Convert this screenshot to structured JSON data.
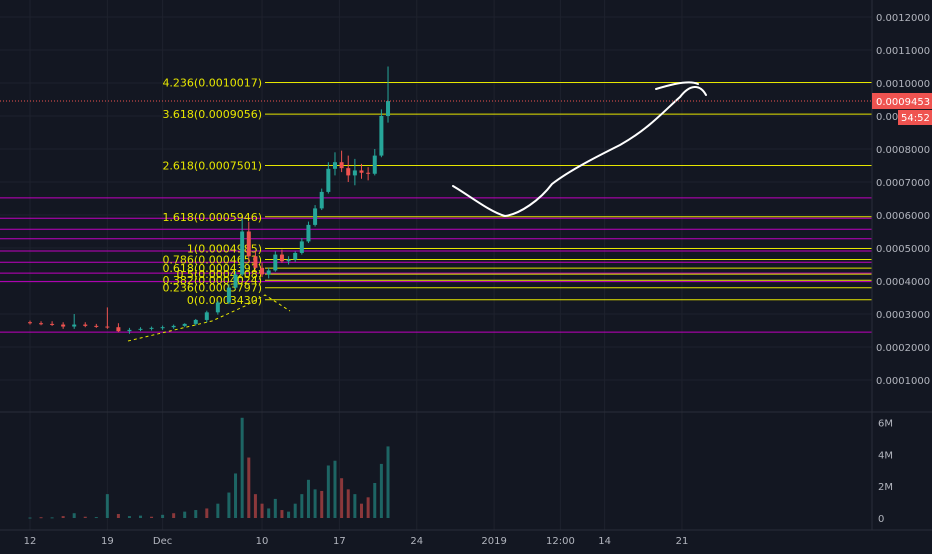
{
  "chart_data": {
    "type": "candlestick",
    "price_axis": {
      "ticks": [
        "0.0012000",
        "0.0011000",
        "0.0010000",
        "0.0009000",
        "0.0008000",
        "0.0007000",
        "0.0006000",
        "0.0005000",
        "0.0004000",
        "0.0003000",
        "0.0002000",
        "0.0001000"
      ],
      "tick_values": [
        0.0012,
        0.0011,
        0.001,
        0.0009,
        0.0008,
        0.0007,
        0.0006,
        0.0005,
        0.0004,
        0.0003,
        0.0002,
        0.0001
      ],
      "range": [
        0.0,
        0.00126
      ],
      "current_price_label": "0.0009453",
      "current_price": 0.0009453,
      "countdown_label": "54:52",
      "current_price_color": "#ef5350"
    },
    "volume_axis": {
      "ticks": [
        "6M",
        "4M",
        "2M",
        "0"
      ],
      "tick_values": [
        6000000,
        4000000,
        2000000,
        0
      ],
      "range": [
        0,
        6600000
      ]
    },
    "time_axis": {
      "ticks": [
        {
          "label": "12",
          "t": 0
        },
        {
          "label": "19",
          "t": 7
        },
        {
          "label": "Dec",
          "t": 12
        },
        {
          "label": "10",
          "t": 21
        },
        {
          "label": "17",
          "t": 28
        },
        {
          "label": "24",
          "t": 35
        },
        {
          "label": "2019",
          "t": 42
        },
        {
          "label": "12:00",
          "t": 48
        },
        {
          "label": "14",
          "t": 52
        },
        {
          "label": "21",
          "t": 59
        }
      ]
    },
    "fib_levels": [
      {
        "label": "4.236(0.0010017)",
        "value": 0.0010017
      },
      {
        "label": "3.618(0.0009056)",
        "value": 0.0009056
      },
      {
        "label": "2.618(0.0007501)",
        "value": 0.0007501
      },
      {
        "label": "1.618(0.0005946)",
        "value": 0.0005946
      },
      {
        "label": "1(0.0004985)",
        "value": 0.0004985
      },
      {
        "label": "0.786(0.0004653)",
        "value": 0.0004653
      },
      {
        "label": "0.618(0.0004391)",
        "value": 0.0004391
      },
      {
        "label": "0.5(0.0004208)",
        "value": 0.0004208
      },
      {
        "label": "0.382(0.0004024)",
        "value": 0.0004024
      },
      {
        "label": "0.236(0.0003797)",
        "value": 0.0003797
      },
      {
        "label": "0(0.0003430)",
        "value": 0.000343
      }
    ],
    "fib_color": "#e6e600",
    "magenta_levels": [
      0.000652,
      0.00059,
      0.000557,
      0.000528,
      0.000491,
      0.000457,
      0.000424,
      0.000398,
      0.000245
    ],
    "magenta_color": "#c000c0",
    "up_color": "#26a69a",
    "down_color": "#ef5350",
    "candles": [
      [
        0,
        0.000275,
        0.00028,
        0.000268,
        0.000272
      ],
      [
        1,
        0.000272,
        0.000278,
        0.000266,
        0.00027
      ],
      [
        2,
        0.00027,
        0.000278,
        0.000264,
        0.000268
      ],
      [
        3,
        0.000268,
        0.000275,
        0.000255,
        0.000262
      ],
      [
        4,
        0.000262,
        0.0003,
        0.000255,
        0.000268
      ],
      [
        5,
        0.000268,
        0.000275,
        0.00026,
        0.000264
      ],
      [
        6,
        0.000264,
        0.00027,
        0.000258,
        0.000262
      ],
      [
        7,
        0.000262,
        0.00032,
        0.000255,
        0.00026
      ],
      [
        8,
        0.00026,
        0.000272,
        0.000245,
        0.000248
      ],
      [
        9,
        0.000248,
        0.000258,
        0.00024,
        0.000252
      ],
      [
        10,
        0.000252,
        0.00026,
        0.000248,
        0.000255
      ],
      [
        11,
        0.000255,
        0.000262,
        0.00025,
        0.000258
      ],
      [
        12,
        0.000258,
        0.000265,
        0.000252,
        0.00026
      ],
      [
        13,
        0.00026,
        0.000268,
        0.000255,
        0.000264
      ],
      [
        14,
        0.000264,
        0.000272,
        0.00026,
        0.00027
      ],
      [
        15,
        0.00027,
        0.000285,
        0.000265,
        0.000282
      ],
      [
        16,
        0.000282,
        0.00031,
        0.000275,
        0.000305
      ],
      [
        17,
        0.000305,
        0.00034,
        0.000298,
        0.000335
      ],
      [
        18,
        0.000335,
        0.00039,
        0.00033,
        0.00038
      ],
      [
        18.6,
        0.00038,
        0.00043,
        0.000375,
        0.00042
      ],
      [
        19.2,
        0.00042,
        0.00059,
        0.000415,
        0.00055
      ],
      [
        19.8,
        0.00055,
        0.00058,
        0.00046,
        0.000475
      ],
      [
        20.4,
        0.000475,
        0.00049,
        0.000435,
        0.00044
      ],
      [
        21,
        0.00044,
        0.000455,
        0.000412,
        0.00042
      ],
      [
        21.6,
        0.00042,
        0.00044,
        0.000408,
        0.000432
      ],
      [
        22.2,
        0.000432,
        0.00049,
        0.000428,
        0.00048
      ],
      [
        22.8,
        0.00048,
        0.000495,
        0.000455,
        0.00046
      ],
      [
        23.4,
        0.00046,
        0.000475,
        0.00045,
        0.000465
      ],
      [
        24,
        0.000465,
        0.00049,
        0.000458,
        0.000485
      ],
      [
        24.6,
        0.000485,
        0.00053,
        0.00048,
        0.00052
      ],
      [
        25.2,
        0.00052,
        0.00058,
        0.000515,
        0.00057
      ],
      [
        25.8,
        0.00057,
        0.00063,
        0.000565,
        0.00062
      ],
      [
        26.4,
        0.00062,
        0.00068,
        0.000615,
        0.00067
      ],
      [
        27,
        0.00067,
        0.00076,
        0.000665,
        0.00074
      ],
      [
        27.6,
        0.00074,
        0.00079,
        0.00072,
        0.00076
      ],
      [
        28.2,
        0.00076,
        0.000795,
        0.00073,
        0.000742
      ],
      [
        28.8,
        0.000742,
        0.00078,
        0.0007,
        0.00072
      ],
      [
        29.4,
        0.00072,
        0.00077,
        0.00069,
        0.000735
      ],
      [
        30,
        0.000735,
        0.000755,
        0.00071,
        0.000728
      ],
      [
        30.6,
        0.000728,
        0.000745,
        0.000705,
        0.000725
      ],
      [
        31.2,
        0.000725,
        0.0008,
        0.00072,
        0.00078
      ],
      [
        31.8,
        0.00078,
        0.00092,
        0.000775,
        0.0009
      ],
      [
        32.4,
        0.0009,
        0.00105,
        0.00088,
        0.0009453
      ]
    ],
    "volumes": [
      [
        0,
        30000,
        "up"
      ],
      [
        1,
        50000,
        "down"
      ],
      [
        2,
        40000,
        "up"
      ],
      [
        3,
        120000,
        "down"
      ],
      [
        4,
        300000,
        "up"
      ],
      [
        5,
        80000,
        "down"
      ],
      [
        6,
        60000,
        "up"
      ],
      [
        7,
        1500000,
        "up"
      ],
      [
        8,
        250000,
        "down"
      ],
      [
        9,
        120000,
        "up"
      ],
      [
        10,
        150000,
        "up"
      ],
      [
        11,
        80000,
        "down"
      ],
      [
        12,
        200000,
        "up"
      ],
      [
        13,
        300000,
        "down"
      ],
      [
        14,
        400000,
        "up"
      ],
      [
        15,
        500000,
        "up"
      ],
      [
        16,
        600000,
        "down"
      ],
      [
        17,
        900000,
        "up"
      ],
      [
        18,
        1600000,
        "up"
      ],
      [
        18.6,
        2800000,
        "up"
      ],
      [
        19.2,
        6300000,
        "up"
      ],
      [
        19.8,
        3800000,
        "down"
      ],
      [
        20.4,
        1500000,
        "down"
      ],
      [
        21,
        900000,
        "down"
      ],
      [
        21.6,
        600000,
        "up"
      ],
      [
        22.2,
        1200000,
        "up"
      ],
      [
        22.8,
        500000,
        "down"
      ],
      [
        23.4,
        400000,
        "up"
      ],
      [
        24,
        900000,
        "up"
      ],
      [
        24.6,
        1500000,
        "up"
      ],
      [
        25.2,
        2400000,
        "up"
      ],
      [
        25.8,
        1800000,
        "up"
      ],
      [
        26.4,
        1700000,
        "down"
      ],
      [
        27,
        3300000,
        "up"
      ],
      [
        27.6,
        3600000,
        "up"
      ],
      [
        28.2,
        2500000,
        "down"
      ],
      [
        28.8,
        1800000,
        "down"
      ],
      [
        29.4,
        1500000,
        "up"
      ],
      [
        30,
        900000,
        "down"
      ],
      [
        30.6,
        1300000,
        "down"
      ],
      [
        31.2,
        2200000,
        "up"
      ],
      [
        31.8,
        3400000,
        "up"
      ],
      [
        32.4,
        4500000,
        "up"
      ]
    ]
  }
}
